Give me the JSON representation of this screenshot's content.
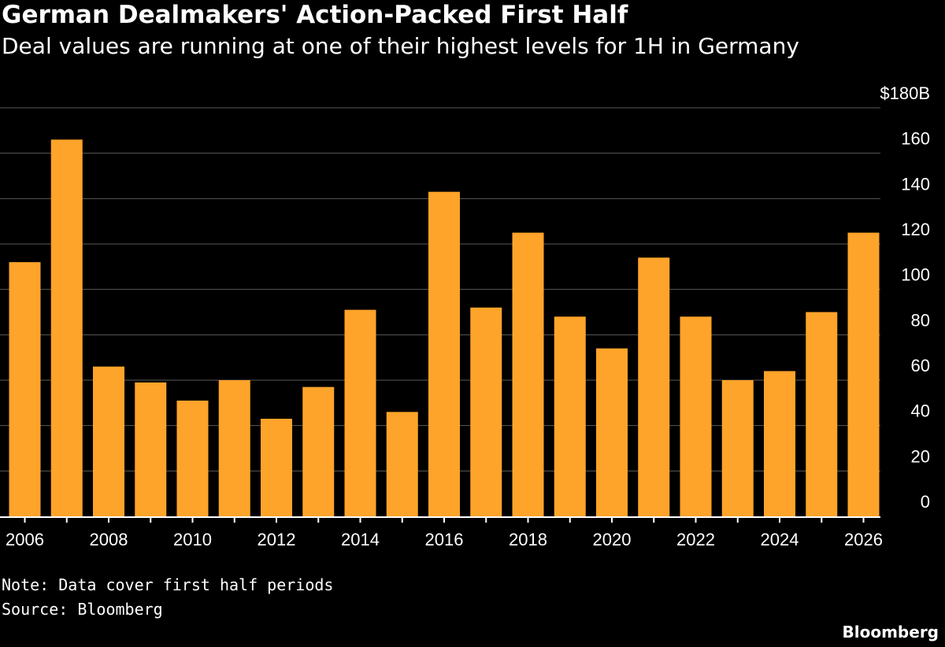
{
  "colors": {
    "background": "#000000",
    "bar": "#FFA42A",
    "grid": "#5a5a5a",
    "text": "#ffffff"
  },
  "footer": {
    "note": "Note: Data cover first half periods",
    "source": "Source: Bloomberg",
    "brand": "Bloomberg"
  },
  "chart_data": {
    "type": "bar",
    "title": "German Dealmakers' Action-Packed First Half",
    "subtitle": "Deal values are running at one of their highest levels for 1H in Germany",
    "xlabel": "",
    "ylabel": "",
    "categories": [
      "2006",
      "2007",
      "2008",
      "2009",
      "2010",
      "2011",
      "2012",
      "2013",
      "2014",
      "2015",
      "2016",
      "2017",
      "2018",
      "2019",
      "2020",
      "2021",
      "2022",
      "2023",
      "2024",
      "2025",
      "2026"
    ],
    "values": [
      112,
      166,
      66,
      59,
      51,
      60,
      43,
      57,
      91,
      46,
      143,
      92,
      125,
      88,
      74,
      114,
      88,
      60,
      64,
      90,
      125
    ],
    "x_tick_labels": [
      "2006",
      "2008",
      "2010",
      "2012",
      "2014",
      "2016",
      "2018",
      "2020",
      "2022",
      "2024",
      "2026"
    ],
    "y_ticks": [
      0,
      20,
      40,
      60,
      80,
      100,
      120,
      140,
      160,
      180
    ],
    "y_tick_labels": [
      "0",
      "20",
      "40",
      "60",
      "80",
      "100",
      "120",
      "140",
      "160",
      "$180B"
    ],
    "ylim": [
      0,
      180
    ],
    "grid": true,
    "y_axis_side": "right"
  }
}
